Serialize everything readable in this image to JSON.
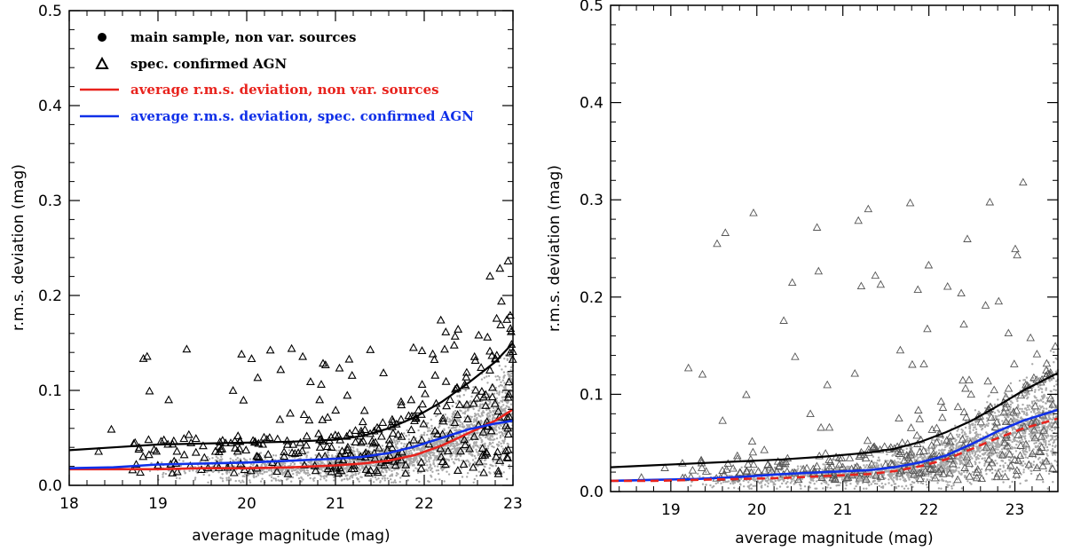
{
  "chart_data": [
    {
      "type": "scatter",
      "panel": "left",
      "xlabel": "average magnitude (mag)",
      "ylabel": "r.m.s. deviation (mag)",
      "xlim": [
        18,
        23
      ],
      "ylim": [
        0,
        0.5
      ],
      "xticks": [
        "18",
        "19",
        "20",
        "21",
        "22",
        "23"
      ],
      "yticks": [
        "0.0",
        "0.1",
        "0.2",
        "0.3",
        "0.4",
        "0.5"
      ],
      "legend": {
        "placement": "top-left",
        "entries": [
          {
            "label": "main sample, non var. sources",
            "marker": "dot",
            "color": "#000000"
          },
          {
            "label": "spec. confirmed AGN",
            "marker": "triangle",
            "color": "#000000"
          },
          {
            "label": "average r.m.s. deviation, non var. sources",
            "marker": "line",
            "color": "#e8231d"
          },
          {
            "label": "average r.m.s. deviation, spec. confirmed AGN",
            "marker": "line",
            "color": "#1030e8"
          }
        ]
      },
      "series": [
        {
          "name": "upper envelope",
          "color": "#000000",
          "style": "solid",
          "x": [
            18.0,
            18.5,
            19.0,
            19.5,
            20.0,
            20.5,
            21.0,
            21.3,
            21.6,
            21.9,
            22.2,
            22.5,
            22.8,
            23.0
          ],
          "y": [
            0.037,
            0.04,
            0.043,
            0.044,
            0.045,
            0.046,
            0.048,
            0.052,
            0.06,
            0.072,
            0.088,
            0.108,
            0.13,
            0.15
          ]
        },
        {
          "name": "average r.m.s. deviation, non var. sources",
          "color": "#e8231d",
          "style": "solid",
          "x": [
            18.0,
            18.5,
            19.0,
            19.5,
            20.0,
            20.5,
            21.0,
            21.3,
            21.6,
            21.9,
            22.2,
            22.5,
            22.8,
            23.0
          ],
          "y": [
            0.017,
            0.017,
            0.017,
            0.018,
            0.018,
            0.019,
            0.021,
            0.023,
            0.026,
            0.032,
            0.042,
            0.055,
            0.068,
            0.08
          ]
        },
        {
          "name": "average r.m.s. deviation, spec. confirmed AGN",
          "color": "#1030e8",
          "style": "solid",
          "x": [
            18.0,
            18.5,
            19.0,
            19.5,
            20.0,
            20.5,
            21.0,
            21.3,
            21.6,
            21.9,
            22.2,
            22.5,
            22.8,
            23.0
          ],
          "y": [
            0.018,
            0.019,
            0.022,
            0.023,
            0.024,
            0.026,
            0.028,
            0.03,
            0.034,
            0.041,
            0.05,
            0.059,
            0.065,
            0.068
          ]
        }
      ]
    },
    {
      "type": "scatter",
      "panel": "right",
      "xlabel": "average magnitude (mag)",
      "ylabel": "r.m.s. deviation (mag)",
      "xlim": [
        18.3,
        23.5
      ],
      "ylim": [
        0,
        0.5
      ],
      "xticks": [
        "19",
        "20",
        "21",
        "22",
        "23"
      ],
      "yticks": [
        "0.0",
        "0.1",
        "0.2",
        "0.3",
        "0.4",
        "0.5"
      ],
      "series": [
        {
          "name": "upper envelope",
          "color": "#000000",
          "style": "solid",
          "x": [
            18.3,
            18.8,
            19.3,
            19.8,
            20.3,
            20.8,
            21.3,
            21.6,
            21.9,
            22.2,
            22.5,
            22.8,
            23.1,
            23.5
          ],
          "y": [
            0.025,
            0.027,
            0.029,
            0.031,
            0.033,
            0.036,
            0.04,
            0.044,
            0.051,
            0.061,
            0.073,
            0.088,
            0.104,
            0.122
          ]
        },
        {
          "name": "average r.m.s. deviation, spec. confirmed AGN",
          "color": "#1030e8",
          "style": "solid",
          "x": [
            18.3,
            18.8,
            19.3,
            19.8,
            20.3,
            20.8,
            21.3,
            21.6,
            21.9,
            22.2,
            22.5,
            22.8,
            23.1,
            23.5
          ],
          "y": [
            0.011,
            0.012,
            0.013,
            0.015,
            0.018,
            0.02,
            0.022,
            0.025,
            0.03,
            0.037,
            0.049,
            0.062,
            0.073,
            0.084
          ]
        },
        {
          "name": "average r.m.s. deviation, non var. sources",
          "color": "#e8231d",
          "style": "dashed",
          "x": [
            18.3,
            18.8,
            19.3,
            19.8,
            20.3,
            20.8,
            21.3,
            21.6,
            21.9,
            22.2,
            22.5,
            22.8,
            23.1,
            23.5
          ],
          "y": [
            0.011,
            0.011,
            0.012,
            0.013,
            0.014,
            0.016,
            0.018,
            0.021,
            0.026,
            0.033,
            0.044,
            0.055,
            0.065,
            0.075
          ]
        }
      ]
    }
  ]
}
